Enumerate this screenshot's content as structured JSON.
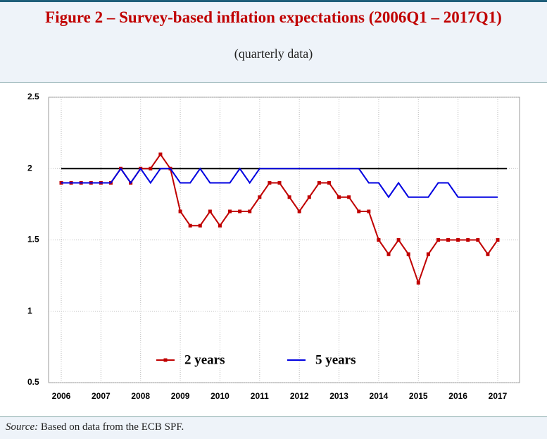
{
  "chart_data": {
    "type": "line",
    "title": "Figure 2 – Survey-based inflation expectations (2006Q1 – 2017Q1)",
    "subtitle": "(quarterly data)",
    "categories": [
      "2006",
      null,
      null,
      null,
      "2007",
      null,
      null,
      null,
      "2008",
      null,
      null,
      null,
      "2009",
      null,
      null,
      null,
      "2010",
      null,
      null,
      null,
      "2011",
      null,
      null,
      null,
      "2012",
      null,
      null,
      null,
      "2013",
      null,
      null,
      null,
      "2014",
      null,
      null,
      null,
      "2015",
      null,
      null,
      null,
      "2016",
      null,
      null,
      null,
      "2017"
    ],
    "series": [
      {
        "name": "2 years",
        "color": "#c00000",
        "marker": "square",
        "values": [
          1.9,
          1.9,
          1.9,
          1.9,
          1.9,
          1.9,
          2.0,
          1.9,
          2.0,
          2.0,
          2.1,
          2.0,
          1.7,
          1.6,
          1.6,
          1.7,
          1.6,
          1.7,
          1.7,
          1.7,
          1.8,
          1.9,
          1.9,
          1.8,
          1.7,
          1.8,
          1.9,
          1.9,
          1.8,
          1.8,
          1.7,
          1.7,
          1.5,
          1.4,
          1.5,
          1.4,
          1.2,
          1.4,
          1.5,
          1.5,
          1.5,
          1.5,
          1.5,
          1.4,
          1.5
        ]
      },
      {
        "name": "5 years",
        "color": "#0000e0",
        "marker": "none",
        "values": [
          1.9,
          1.9,
          1.9,
          1.9,
          1.9,
          1.9,
          2.0,
          1.9,
          2.0,
          1.9,
          2.0,
          2.0,
          1.9,
          1.9,
          2.0,
          1.9,
          1.9,
          1.9,
          2.0,
          1.9,
          2.0,
          2.0,
          2.0,
          2.0,
          2.0,
          2.0,
          2.0,
          2.0,
          2.0,
          2.0,
          2.0,
          1.9,
          1.9,
          1.8,
          1.9,
          1.8,
          1.8,
          1.8,
          1.9,
          1.9,
          1.8,
          1.8,
          1.8,
          1.8,
          1.8
        ]
      }
    ],
    "reference_line": {
      "value": 2,
      "color": "#000000"
    },
    "ylim": [
      0.5,
      2.5
    ],
    "yticks": [
      0.5,
      1,
      1.5,
      2,
      2.5
    ],
    "grid": true,
    "legend": "lower center",
    "source_label": "Source:",
    "source_text": "Based on data from the ECB SPF."
  }
}
